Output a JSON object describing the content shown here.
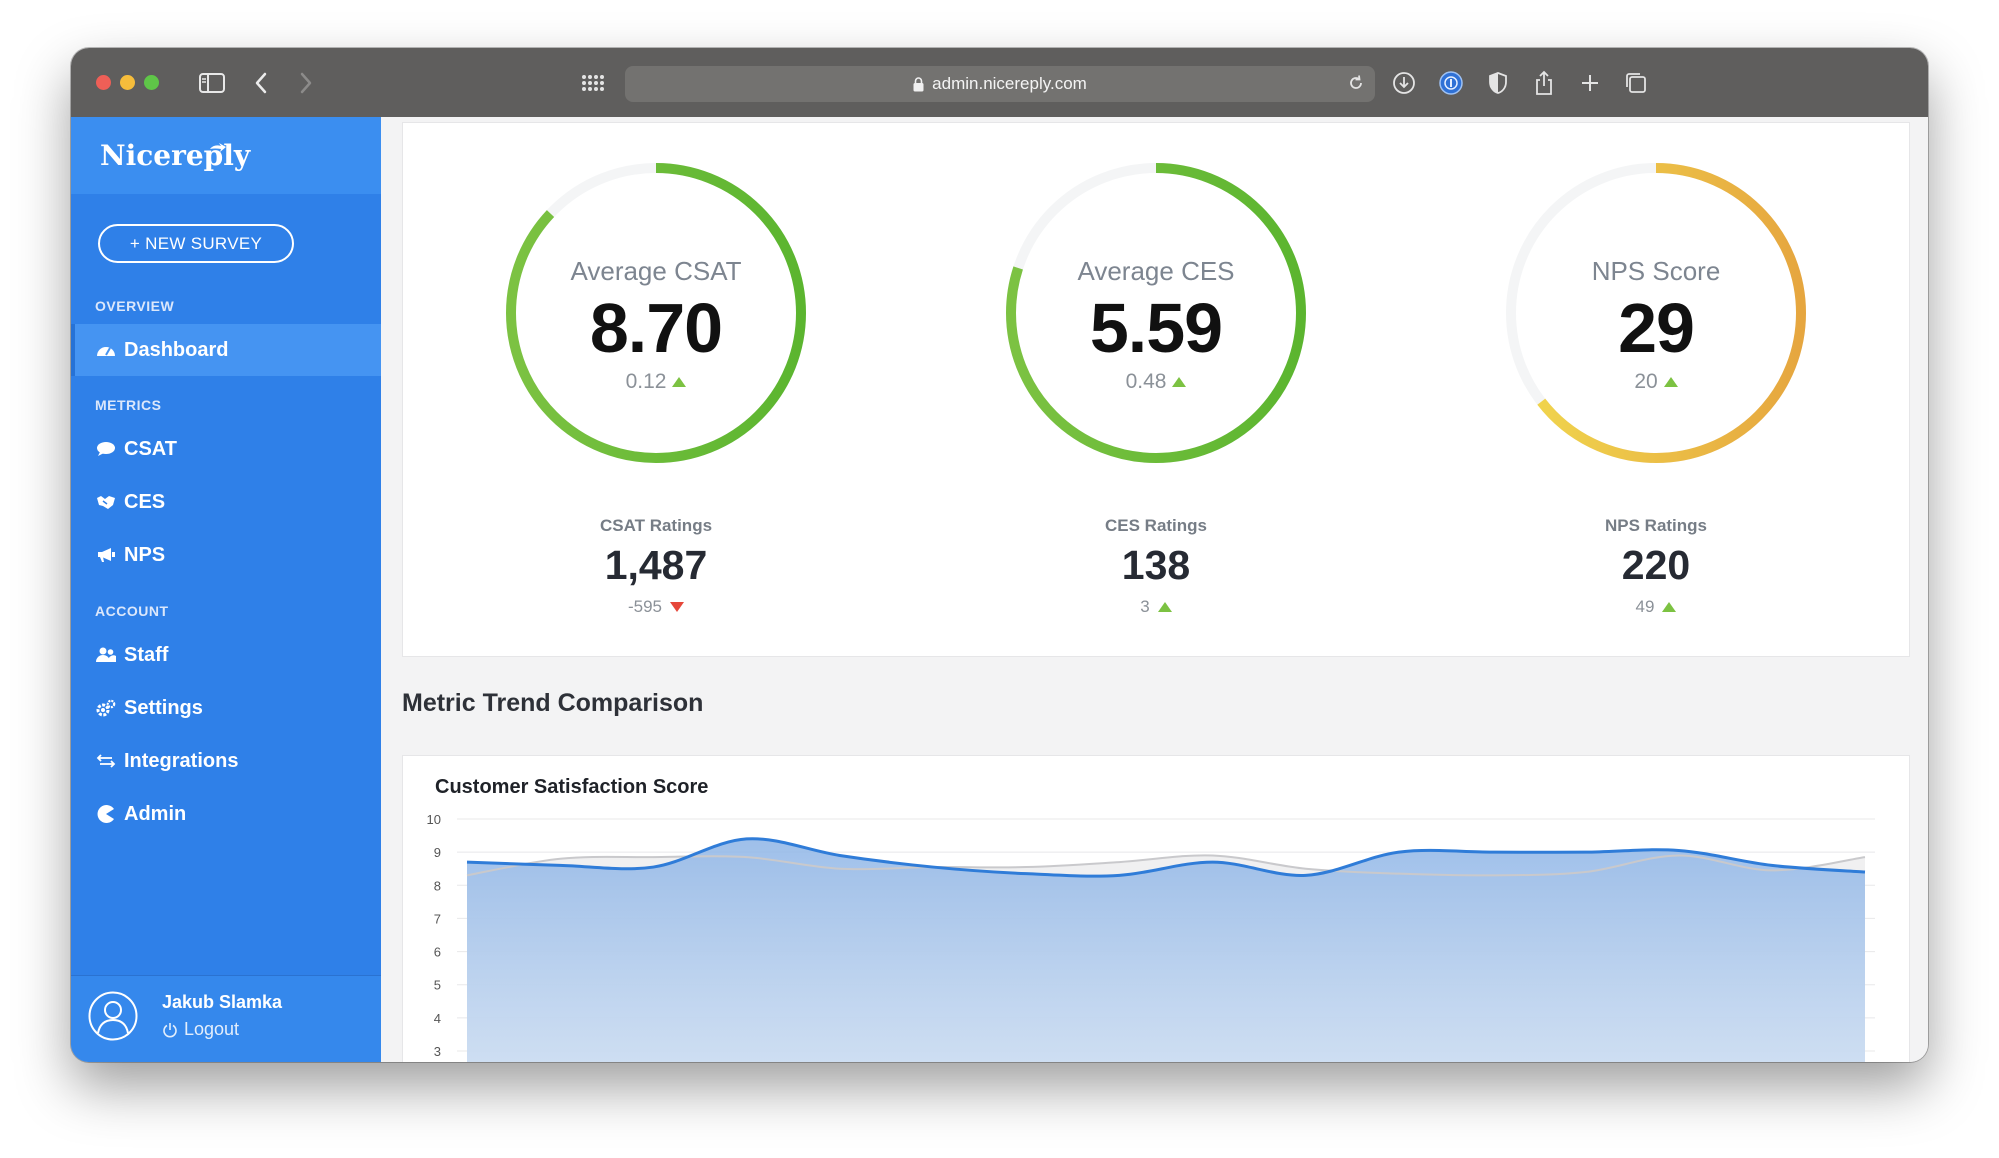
{
  "browser": {
    "url": "admin.nicereply.com"
  },
  "sidebar": {
    "brand": "Nicereply",
    "new_survey": "+ NEW SURVEY",
    "sections": {
      "overview": "OVERVIEW",
      "metrics": "METRICS",
      "account": "ACCOUNT"
    },
    "items": [
      {
        "label": "Dashboard",
        "icon": "gauge-icon",
        "active": true
      },
      {
        "label": "CSAT",
        "icon": "speech-bubble-icon"
      },
      {
        "label": "CES",
        "icon": "handshake-icon"
      },
      {
        "label": "NPS",
        "icon": "megaphone-icon"
      },
      {
        "label": "Staff",
        "icon": "users-icon"
      },
      {
        "label": "Settings",
        "icon": "gears-icon"
      },
      {
        "label": "Integrations",
        "icon": "exchange-arrows-icon"
      },
      {
        "label": "Admin",
        "icon": "pacman-icon"
      }
    ],
    "user": {
      "name": "Jakub Slamka",
      "logout": "Logout"
    }
  },
  "gauges": [
    {
      "title": "Average CSAT",
      "value": "8.70",
      "delta": "0.12",
      "trend": "up",
      "fraction": 0.87,
      "color_start": "#7cc242",
      "color_end": "#5bb52f"
    },
    {
      "title": "Average CES",
      "value": "5.59",
      "delta": "0.48",
      "trend": "up",
      "fraction": 0.8,
      "color_start": "#7cc242",
      "color_end": "#5bb52f"
    },
    {
      "title": "NPS Score",
      "value": "29",
      "delta": "20",
      "trend": "up",
      "fraction": 0.645,
      "color_start": "#f1d84e",
      "color_end": "#e6a63f"
    }
  ],
  "stats": [
    {
      "label": "CSAT Ratings",
      "value": "1,487",
      "delta": "-595",
      "trend": "down"
    },
    {
      "label": "CES Ratings",
      "value": "138",
      "delta": "3",
      "trend": "up"
    },
    {
      "label": "NPS Ratings",
      "value": "220",
      "delta": "49",
      "trend": "up"
    }
  ],
  "colors": {
    "sidebar": "#2f80e8",
    "trend_up": "#7cc242",
    "trend_down": "#e6473a",
    "line_primary": "#2f7cd8",
    "line_secondary": "#c9c9cc"
  },
  "section_title": "Metric Trend Comparison",
  "chart_data": {
    "type": "area",
    "title": "Customer Satisfaction Score",
    "ylim": [
      3,
      10
    ],
    "yticks": [
      "10",
      "9",
      "8",
      "7",
      "6",
      "5",
      "4",
      "3"
    ],
    "grid": true,
    "series": [
      {
        "values": [
          8.7,
          8.6,
          8.55,
          9.4,
          8.9,
          8.55,
          8.35,
          8.3,
          8.7,
          8.3,
          9.0,
          9.0,
          9.0,
          9.05,
          8.6,
          8.4
        ]
      },
      {
        "values": [
          8.3,
          8.8,
          8.85,
          8.85,
          8.5,
          8.55,
          8.55,
          8.7,
          8.9,
          8.5,
          8.35,
          8.3,
          8.4,
          8.9,
          8.45,
          8.85
        ]
      }
    ]
  }
}
